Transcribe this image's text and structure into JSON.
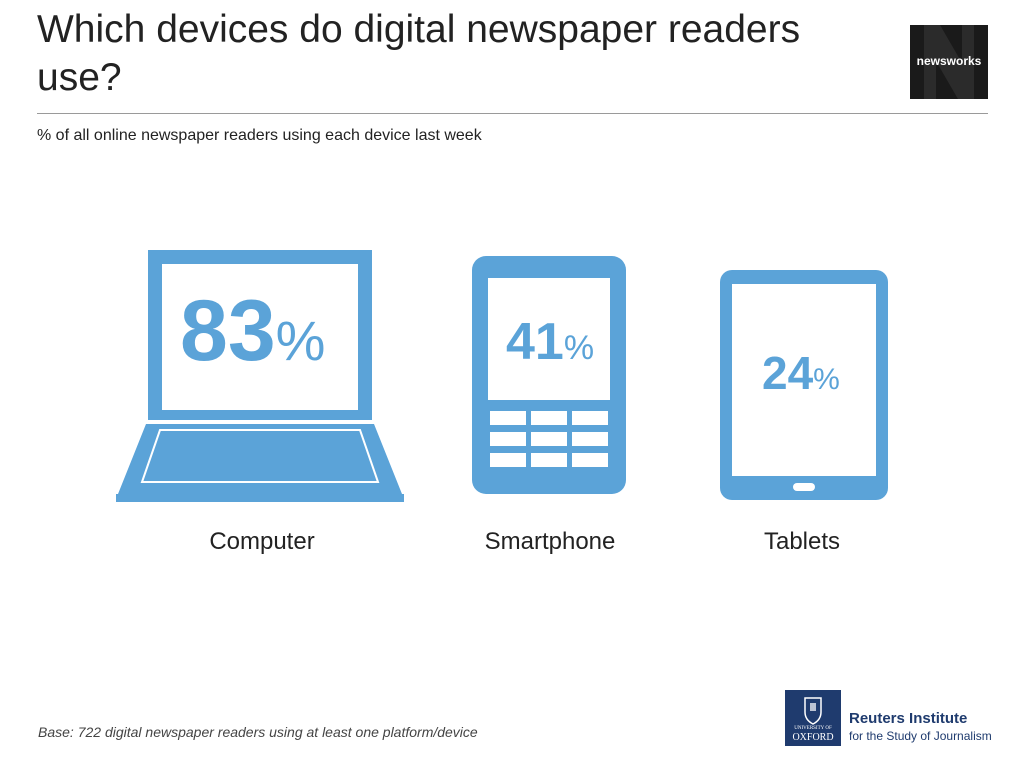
{
  "title": "Which devices do digital newspaper readers use?",
  "subtitle": "% of all online newspaper readers using each device last week",
  "logo_newsworks": "newsworks",
  "chart_data": {
    "type": "bar",
    "title": "Which devices do digital newspaper readers use?",
    "subtitle": "% of all online newspaper readers using each device last week",
    "categories": [
      "Computer",
      "Smartphone",
      "Tablets"
    ],
    "values": [
      83,
      41,
      24
    ],
    "value_labels": [
      "83",
      "41",
      "24"
    ],
    "unit": "%"
  },
  "footer": {
    "base_note": "Base: 722 digital newspaper readers using at least one platform/device",
    "institute_name": "Reuters Institute",
    "institute_sub": "for the Study of Journalism",
    "university_small": "UNIVERSITY OF",
    "university_name": "OXFORD"
  },
  "colors": {
    "accent": "#5ba3d8",
    "oxford_blue": "#1f3b6e"
  },
  "icons": [
    "laptop-icon",
    "smartphone-icon",
    "tablet-icon"
  ]
}
